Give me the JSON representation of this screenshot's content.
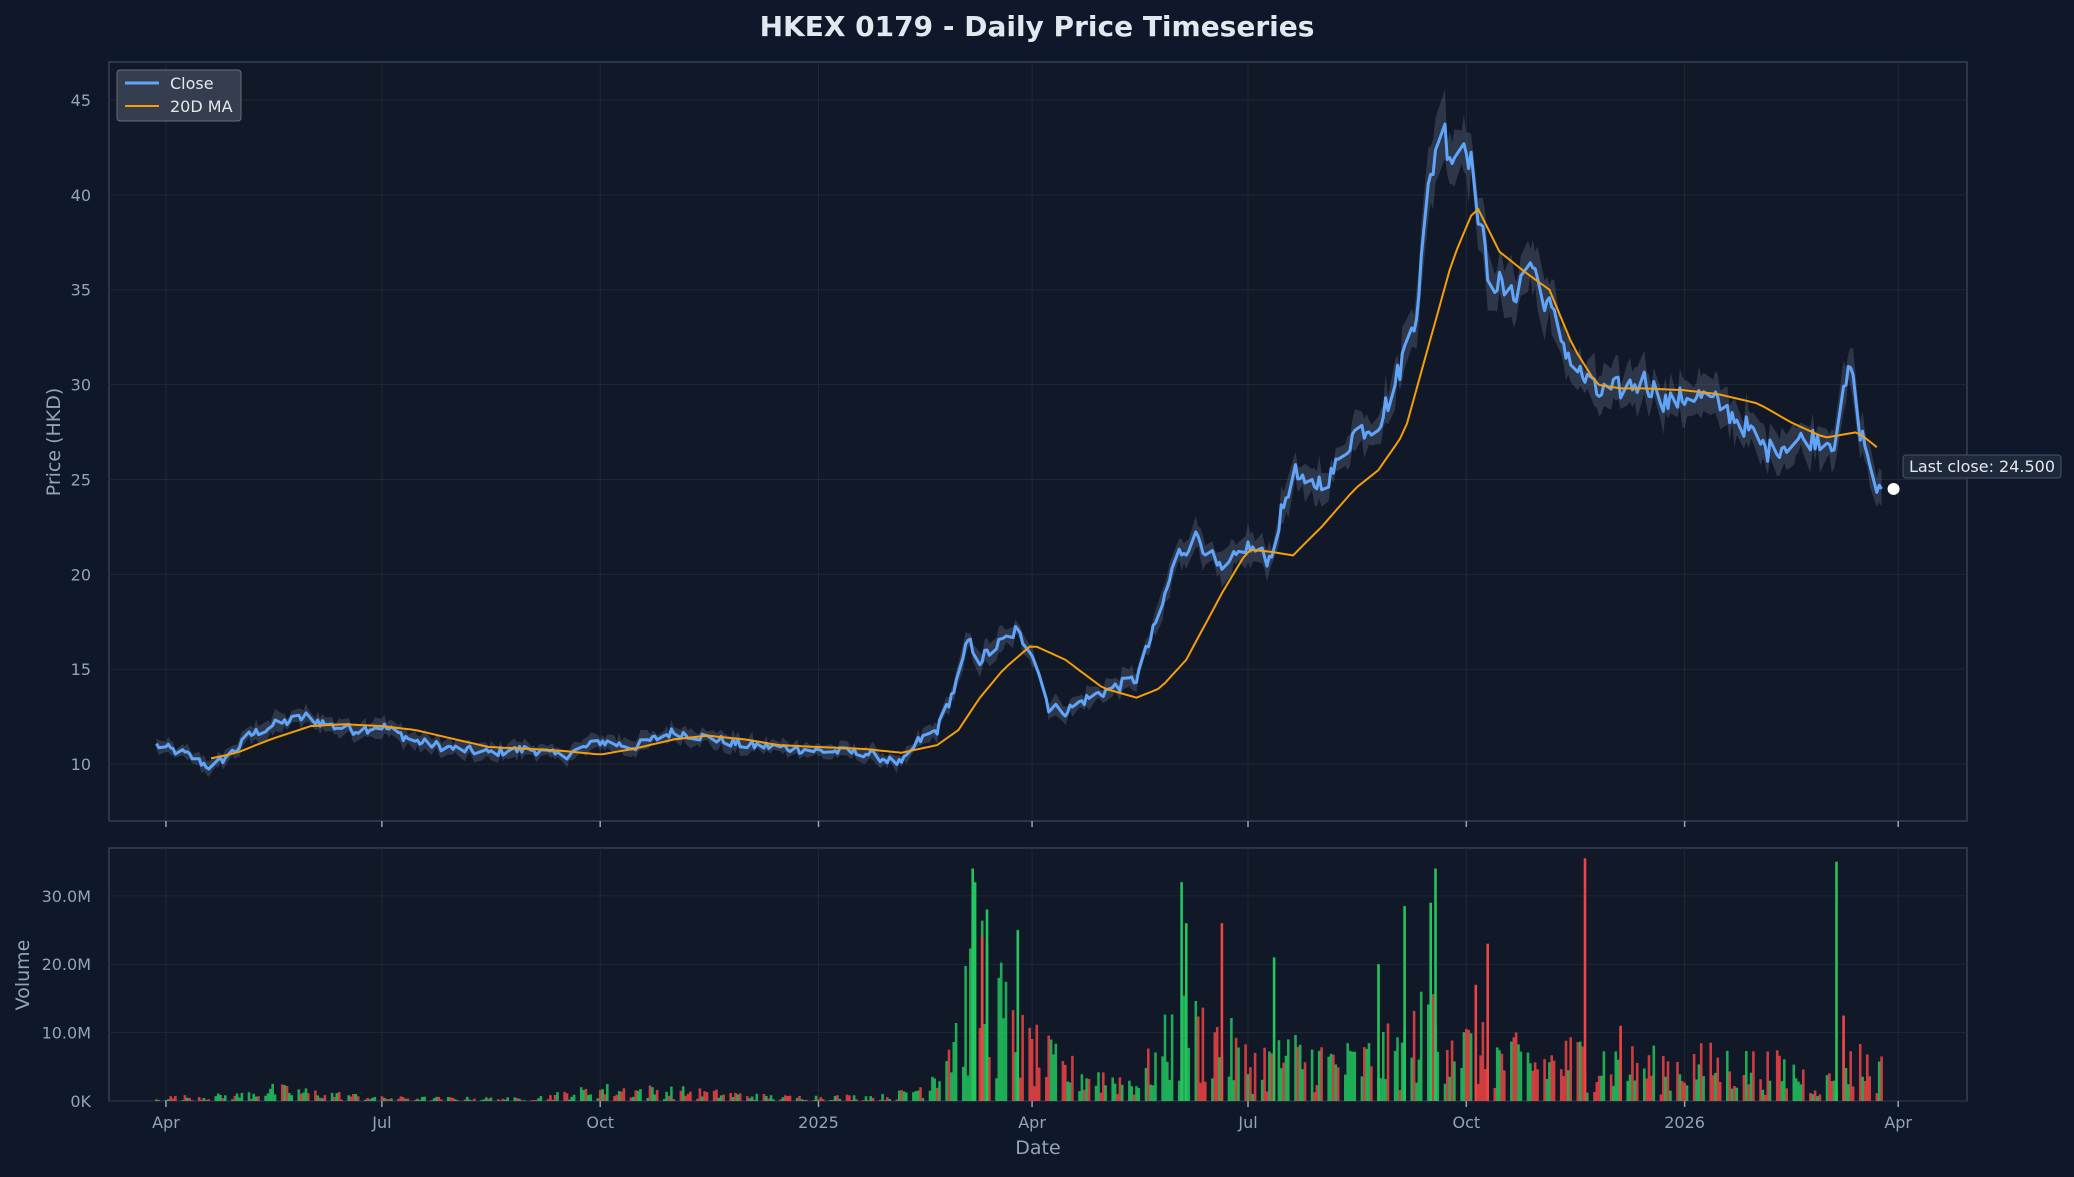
{
  "chart_data": [
    {
      "type": "line",
      "title": "HKEX 0179 - Daily Price Timeseries",
      "ylabel": "Price (HKD)",
      "ylim": [
        7,
        47
      ],
      "y_ticks": [
        10,
        15,
        20,
        25,
        30,
        35,
        40,
        45
      ],
      "x_ticks": [
        "Apr",
        "Jul",
        "Oct",
        "2025",
        "Apr",
        "Jul",
        "Oct",
        "2026",
        "Apr"
      ],
      "x_tick_dates": [
        "2024-04-01",
        "2024-07-01",
        "2024-10-01",
        "2025-01-01",
        "2025-04-01",
        "2025-07-01",
        "2025-10-01",
        "2026-01-01",
        "2026-04-01"
      ],
      "xlim": [
        "2024-03-08",
        "2026-04-30"
      ],
      "grid": true,
      "legend": "top-left",
      "colors": {
        "close": "#60a5fa",
        "ma": "#f59e0b",
        "band": "#475569"
      },
      "series": [
        {
          "name": "Close",
          "x": [
            "2024-03-28",
            "2024-04-10",
            "2024-04-20",
            "2024-05-01",
            "2024-05-06",
            "2024-05-15",
            "2024-05-30",
            "2024-06-10",
            "2024-06-20",
            "2024-07-01",
            "2024-07-15",
            "2024-08-01",
            "2024-08-15",
            "2024-09-01",
            "2024-09-15",
            "2024-10-01",
            "2024-10-15",
            "2024-11-01",
            "2024-11-15",
            "2024-12-01",
            "2024-12-15",
            "2025-01-01",
            "2025-01-20",
            "2025-02-05",
            "2025-02-12",
            "2025-02-20",
            "2025-03-01",
            "2025-03-05",
            "2025-03-10",
            "2025-03-20",
            "2025-03-25",
            "2025-04-01",
            "2025-04-08",
            "2025-04-15",
            "2025-04-25",
            "2025-05-05",
            "2025-05-15",
            "2025-05-25",
            "2025-06-01",
            "2025-06-10",
            "2025-06-20",
            "2025-06-30",
            "2025-07-10",
            "2025-07-20",
            "2025-07-25",
            "2025-08-05",
            "2025-08-15",
            "2025-08-25",
            "2025-09-01",
            "2025-09-10",
            "2025-09-15",
            "2025-09-20",
            "2025-09-25",
            "2025-10-01",
            "2025-10-05",
            "2025-10-10",
            "2025-10-20",
            "2025-10-28",
            "2025-11-05",
            "2025-11-15",
            "2025-11-25",
            "2025-12-05",
            "2025-12-15",
            "2025-12-25",
            "2026-01-05",
            "2026-01-15",
            "2026-01-25",
            "2026-02-05",
            "2026-02-15",
            "2026-02-25",
            "2026-03-05",
            "2026-03-12",
            "2026-03-15",
            "2026-03-20",
            "2026-03-23",
            "2026-03-25"
          ],
          "values": [
            11.0,
            10.5,
            9.8,
            10.8,
            11.5,
            12.0,
            12.5,
            12.0,
            11.8,
            12.0,
            11.2,
            10.8,
            10.6,
            10.8,
            10.4,
            11.2,
            10.9,
            11.7,
            11.4,
            11.0,
            10.9,
            10.7,
            10.6,
            10.0,
            11.2,
            11.8,
            14.5,
            16.5,
            15.5,
            16.5,
            17.0,
            16.0,
            13.0,
            12.8,
            13.5,
            14.0,
            14.5,
            18.0,
            21.0,
            22.0,
            20.0,
            21.5,
            20.8,
            25.5,
            24.5,
            25.2,
            27.5,
            28.0,
            30.0,
            34.0,
            40.0,
            44.0,
            42.0,
            43.0,
            40.0,
            36.0,
            34.5,
            36.5,
            34.0,
            31.0,
            29.5,
            29.8,
            30.2,
            29.0,
            29.5,
            29.0,
            28.0,
            26.5,
            27.0,
            27.2,
            27.0,
            31.0,
            28.0,
            26.0,
            24.0,
            24.5
          ]
        },
        {
          "name": "20D MA",
          "x": [
            "2024-04-20",
            "2024-05-01",
            "2024-05-15",
            "2024-06-01",
            "2024-06-15",
            "2024-07-01",
            "2024-07-15",
            "2024-08-01",
            "2024-08-15",
            "2024-09-01",
            "2024-09-15",
            "2024-10-01",
            "2024-10-15",
            "2024-11-01",
            "2024-11-15",
            "2024-12-01",
            "2024-12-15",
            "2025-01-01",
            "2025-01-20",
            "2025-02-05",
            "2025-02-20",
            "2025-03-01",
            "2025-03-10",
            "2025-03-20",
            "2025-04-01",
            "2025-04-15",
            "2025-05-01",
            "2025-05-15",
            "2025-05-25",
            "2025-06-05",
            "2025-06-20",
            "2025-07-01",
            "2025-07-10",
            "2025-07-20",
            "2025-08-01",
            "2025-08-15",
            "2025-08-25",
            "2025-09-05",
            "2025-09-15",
            "2025-09-25",
            "2025-10-05",
            "2025-10-15",
            "2025-10-25",
            "2025-11-05",
            "2025-11-15",
            "2025-11-25",
            "2025-12-05",
            "2025-12-15",
            "2026-01-01",
            "2026-01-15",
            "2026-02-01",
            "2026-02-15",
            "2026-03-01",
            "2026-03-15",
            "2026-03-25"
          ],
          "values": [
            10.3,
            10.6,
            11.3,
            12.0,
            12.1,
            12.0,
            11.8,
            11.3,
            10.9,
            10.8,
            10.7,
            10.5,
            10.8,
            11.3,
            11.5,
            11.3,
            11.0,
            10.9,
            10.8,
            10.6,
            11.0,
            11.8,
            13.5,
            15.0,
            16.3,
            15.5,
            14.0,
            13.5,
            14.0,
            15.5,
            19.0,
            21.3,
            21.2,
            21.0,
            22.5,
            24.5,
            25.5,
            27.5,
            32.0,
            36.5,
            39.5,
            37.0,
            36.0,
            35.0,
            32.0,
            30.0,
            29.8,
            29.8,
            29.7,
            29.5,
            29.0,
            28.0,
            27.2,
            27.5,
            26.5
          ]
        }
      ],
      "annotations": [
        {
          "text": "Last close: 24.500",
          "x": "2026-03-25",
          "y": 24.5
        }
      ]
    },
    {
      "type": "bar",
      "xlabel": "Date",
      "ylabel": "Volume",
      "ylim": [
        0,
        37000000
      ],
      "y_ticks": [
        0,
        10000000,
        20000000,
        30000000
      ],
      "y_tick_labels": [
        "0K",
        "10.0M",
        "20.0M",
        "30.0M"
      ],
      "x_ticks": [
        "Apr",
        "Jul",
        "Oct",
        "2025",
        "Apr",
        "Jul",
        "Oct",
        "2026",
        "Apr"
      ],
      "x_tick_dates": [
        "2024-04-01",
        "2024-07-01",
        "2024-10-01",
        "2025-01-01",
        "2025-04-01",
        "2025-07-01",
        "2025-10-01",
        "2026-01-01",
        "2026-04-01"
      ],
      "xlim": [
        "2024-03-08",
        "2026-04-30"
      ],
      "grid": true,
      "colors": {
        "up": "#22c55e",
        "down": "#ef4444"
      },
      "volume_profile": {
        "x": [
          "2024-03-28",
          "2024-05-01",
          "2024-05-15",
          "2024-07-01",
          "2024-09-01",
          "2024-10-01",
          "2024-11-01",
          "2024-12-15",
          "2025-02-01",
          "2025-02-15",
          "2025-03-01",
          "2025-03-10",
          "2025-03-25",
          "2025-04-15",
          "2025-05-15",
          "2025-06-01",
          "2025-06-15",
          "2025-07-01",
          "2025-07-20",
          "2025-08-15",
          "2025-09-05",
          "2025-09-20",
          "2025-10-01",
          "2025-10-15",
          "2025-11-01",
          "2025-11-20",
          "2025-12-15",
          "2026-01-15",
          "2026-02-15",
          "2026-03-01",
          "2026-03-10",
          "2026-03-25"
        ],
        "values": [
          400000,
          700000,
          1500000,
          400000,
          300000,
          1500000,
          1300000,
          500000,
          600000,
          2000000,
          10000000,
          18000000,
          8000000,
          4000000,
          2500000,
          9000000,
          9000000,
          5000000,
          6000000,
          5000000,
          7000000,
          12000000,
          7000000,
          6000000,
          5000000,
          6000000,
          4500000,
          5000000,
          4000000,
          2000000,
          6000000,
          4000000
        ]
      },
      "peaks": [
        {
          "x": "2025-03-07",
          "value": 34000000,
          "dir": "up"
        },
        {
          "x": "2025-03-08",
          "value": 32000000,
          "dir": "up"
        },
        {
          "x": "2025-03-13",
          "value": 28000000,
          "dir": "up"
        },
        {
          "x": "2025-03-11",
          "value": 24000000,
          "dir": "down"
        },
        {
          "x": "2025-03-26",
          "value": 25000000,
          "dir": "up"
        },
        {
          "x": "2025-06-03",
          "value": 32000000,
          "dir": "up"
        },
        {
          "x": "2025-06-05",
          "value": 26000000,
          "dir": "up"
        },
        {
          "x": "2025-06-20",
          "value": 26000000,
          "dir": "down"
        },
        {
          "x": "2025-07-12",
          "value": 21000000,
          "dir": "up"
        },
        {
          "x": "2025-08-25",
          "value": 20000000,
          "dir": "up"
        },
        {
          "x": "2025-09-05",
          "value": 28500000,
          "dir": "up"
        },
        {
          "x": "2025-09-18",
          "value": 34000000,
          "dir": "up"
        },
        {
          "x": "2025-09-16",
          "value": 29000000,
          "dir": "up"
        },
        {
          "x": "2025-10-05",
          "value": 17000000,
          "dir": "down"
        },
        {
          "x": "2025-10-10",
          "value": 23000000,
          "dir": "down"
        },
        {
          "x": "2025-11-20",
          "value": 35500000,
          "dir": "down"
        },
        {
          "x": "2025-12-05",
          "value": 11000000,
          "dir": "down"
        },
        {
          "x": "2026-03-06",
          "value": 35000000,
          "dir": "up"
        },
        {
          "x": "2026-03-09",
          "value": 12500000,
          "dir": "down"
        }
      ]
    }
  ]
}
